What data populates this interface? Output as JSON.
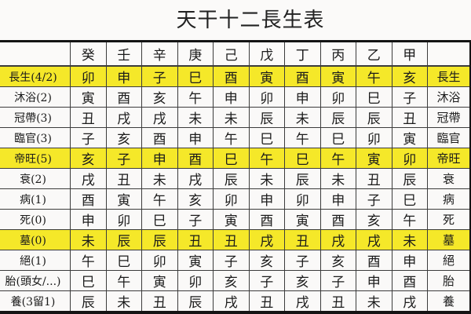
{
  "title": "天干十二長生表",
  "colors": {
    "highlight": "#f5e829",
    "grid": "#3c3c3c",
    "frame": "#141414",
    "paper": "#faf9f8",
    "text": "#1b1b1b"
  },
  "table": {
    "stems": [
      "癸",
      "壬",
      "辛",
      "庚",
      "己",
      "戊",
      "丁",
      "丙",
      "乙",
      "甲"
    ],
    "corner_left": "",
    "corner_right": "",
    "rows": [
      {
        "label": "長生(4/2)",
        "right": "長生",
        "highlight": true,
        "cells": [
          "卯",
          "申",
          "子",
          "巳",
          "酉",
          "寅",
          "酉",
          "寅",
          "午",
          "亥"
        ]
      },
      {
        "label": "沐浴(2)",
        "right": "沐浴",
        "highlight": false,
        "cells": [
          "寅",
          "酉",
          "亥",
          "午",
          "申",
          "卯",
          "申",
          "卯",
          "巳",
          "子"
        ]
      },
      {
        "label": "冠帶(3)",
        "right": "冠帶",
        "highlight": false,
        "cells": [
          "丑",
          "戌",
          "戌",
          "未",
          "未",
          "辰",
          "未",
          "辰",
          "辰",
          "丑"
        ]
      },
      {
        "label": "臨官(3)",
        "right": "臨官",
        "highlight": false,
        "cells": [
          "子",
          "亥",
          "酉",
          "申",
          "午",
          "巳",
          "午",
          "巳",
          "卯",
          "寅"
        ]
      },
      {
        "label": "帝旺(5)",
        "right": "帝旺",
        "highlight": true,
        "cells": [
          "亥",
          "子",
          "申",
          "酉",
          "巳",
          "午",
          "巳",
          "午",
          "寅",
          "卯"
        ]
      },
      {
        "label": "衰(2)",
        "right": "衰",
        "highlight": false,
        "cells": [
          "戌",
          "丑",
          "未",
          "戌",
          "辰",
          "未",
          "辰",
          "未",
          "丑",
          "辰"
        ]
      },
      {
        "label": "病(1)",
        "right": "病",
        "highlight": false,
        "cells": [
          "酉",
          "寅",
          "午",
          "亥",
          "卯",
          "申",
          "卯",
          "申",
          "子",
          "巳"
        ]
      },
      {
        "label": "死(0)",
        "right": "死",
        "highlight": false,
        "cells": [
          "申",
          "卯",
          "巳",
          "子",
          "寅",
          "酉",
          "寅",
          "酉",
          "亥",
          "午"
        ]
      },
      {
        "label": "墓(0)",
        "right": "墓",
        "highlight": true,
        "cells": [
          "未",
          "辰",
          "辰",
          "丑",
          "丑",
          "戌",
          "丑",
          "戌",
          "戌",
          "未"
        ]
      },
      {
        "label": "絕(1)",
        "right": "絕",
        "highlight": false,
        "cells": [
          "午",
          "巳",
          "卯",
          "寅",
          "子",
          "亥",
          "子",
          "亥",
          "酉",
          "申"
        ]
      },
      {
        "label": "胎(頭女/...)",
        "right": "胎",
        "highlight": false,
        "cells": [
          "巳",
          "午",
          "寅",
          "卯",
          "亥",
          "子",
          "亥",
          "子",
          "申",
          "酉"
        ]
      },
      {
        "label": "養(3留1)",
        "right": "養",
        "highlight": false,
        "cells": [
          "辰",
          "未",
          "丑",
          "辰",
          "戌",
          "丑",
          "戌",
          "丑",
          "未",
          "戌"
        ]
      }
    ]
  }
}
